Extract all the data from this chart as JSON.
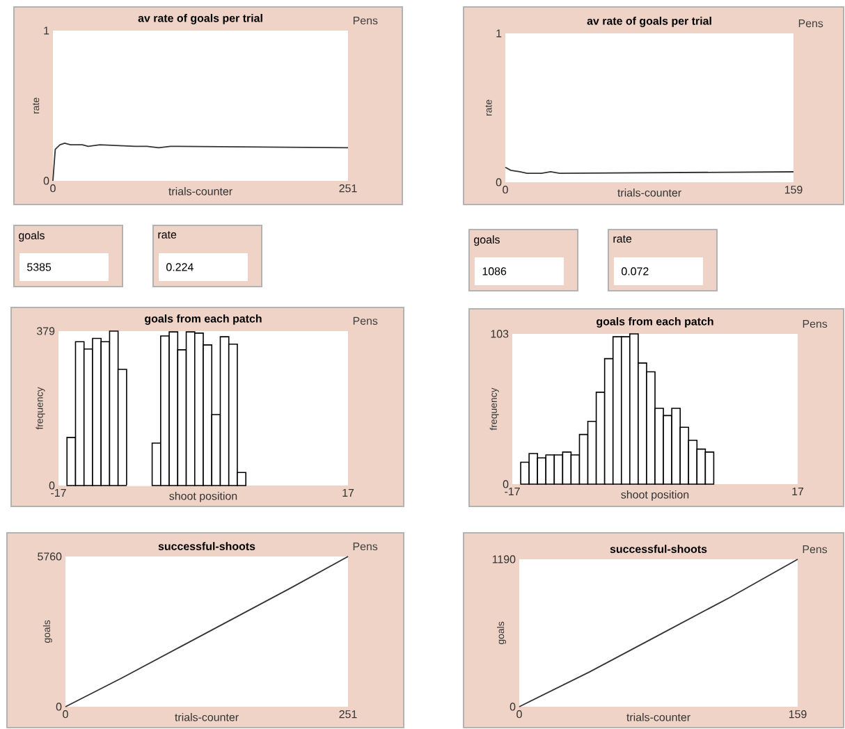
{
  "chart_data": [
    {
      "type": "line",
      "title": "av rate of goals per trial",
      "xlabel": "trials-counter",
      "ylabel": "rate",
      "annotations": [
        "Pens"
      ],
      "xlim": [
        0,
        251
      ],
      "ylim": [
        0,
        1
      ],
      "xticks": [
        0,
        251
      ],
      "yticks": [
        0,
        1
      ],
      "color": "#333333",
      "x": [
        0,
        2,
        6,
        10,
        15,
        25,
        30,
        40,
        70,
        80,
        90,
        100,
        251
      ],
      "values": [
        0,
        0.21,
        0.24,
        0.25,
        0.24,
        0.24,
        0.23,
        0.24,
        0.23,
        0.23,
        0.22,
        0.23,
        0.22
      ]
    },
    {
      "type": "line",
      "title": "av rate of goals per trial",
      "xlabel": "trials-counter",
      "ylabel": "rate",
      "annotations": [
        "Pens"
      ],
      "xlim": [
        0,
        159
      ],
      "ylim": [
        0,
        1
      ],
      "xticks": [
        0,
        159
      ],
      "yticks": [
        0,
        1
      ],
      "color": "#333333",
      "x": [
        0,
        3,
        8,
        12,
        20,
        25,
        30,
        159
      ],
      "values": [
        0.1,
        0.08,
        0.07,
        0.06,
        0.06,
        0.07,
        0.06,
        0.07
      ]
    },
    {
      "type": "other",
      "categories": [
        "goals",
        "rate"
      ],
      "values": [
        5385,
        0.224
      ],
      "data_labels": true
    },
    {
      "type": "other",
      "categories": [
        "goals",
        "rate"
      ],
      "values": [
        1086,
        0.072
      ],
      "data_labels": true
    },
    {
      "type": "histogram",
      "title": "goals from each patch",
      "xlabel": "shoot position",
      "ylabel": "frequency",
      "annotations": [
        "Pens"
      ],
      "xlim": [
        -17,
        17
      ],
      "ylim": [
        0,
        379
      ],
      "xticks": [
        -17,
        17
      ],
      "yticks": [
        0,
        379
      ],
      "color": "#ffffff",
      "bins": [
        -16,
        -15,
        -14,
        -13,
        -12,
        -11,
        -10,
        -9,
        -8,
        -7,
        -6,
        -5,
        -4,
        -3,
        -2,
        -1,
        0,
        1,
        2,
        3,
        4,
        5
      ],
      "values": [
        118,
        353,
        335,
        361,
        353,
        379,
        285,
        0,
        0,
        0,
        104,
        367,
        377,
        333,
        377,
        374,
        345,
        174,
        365,
        347,
        32
      ]
    },
    {
      "type": "histogram",
      "title": "goals from each patch",
      "xlabel": "shoot position",
      "ylabel": "frequency",
      "annotations": [
        "Pens"
      ],
      "xlim": [
        -17,
        17
      ],
      "ylim": [
        0,
        103
      ],
      "xticks": [
        -17,
        17
      ],
      "yticks": [
        0,
        103
      ],
      "color": "#ffffff",
      "bins": [
        -16,
        -15,
        -14,
        -13,
        -12,
        -11,
        -10,
        -9,
        -8,
        -7,
        -6,
        -5,
        -4,
        -3,
        -2,
        -1,
        0,
        1,
        2,
        3,
        4,
        5,
        6,
        7
      ],
      "values": [
        15,
        21,
        18,
        20,
        20,
        22,
        20,
        34,
        43,
        63,
        86,
        101,
        101,
        103,
        83,
        77,
        52,
        47,
        52,
        39,
        30,
        24,
        22
      ]
    },
    {
      "type": "line",
      "title": "successful-shoots",
      "xlabel": "trials-counter",
      "ylabel": "goals",
      "annotations": [
        "Pens"
      ],
      "xlim": [
        0,
        251
      ],
      "ylim": [
        0,
        5760
      ],
      "xticks": [
        0,
        251
      ],
      "yticks": [
        0,
        5760
      ],
      "color": "#333333",
      "x": [
        0,
        50,
        100,
        150,
        200,
        251
      ],
      "values": [
        0,
        1100,
        2250,
        3400,
        4550,
        5760
      ]
    },
    {
      "type": "line",
      "title": "successful-shoots",
      "xlabel": "trials-counter",
      "ylabel": "goals",
      "annotations": [
        "Pens"
      ],
      "xlim": [
        0,
        159
      ],
      "ylim": [
        0,
        1190
      ],
      "xticks": [
        0,
        159
      ],
      "yticks": [
        0,
        1190
      ],
      "color": "#333333",
      "x": [
        0,
        40,
        80,
        120,
        159
      ],
      "values": [
        0,
        280,
        580,
        880,
        1190
      ]
    }
  ]
}
